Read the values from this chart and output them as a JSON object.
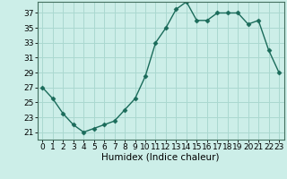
{
  "x": [
    0,
    1,
    2,
    3,
    4,
    5,
    6,
    7,
    8,
    9,
    10,
    11,
    12,
    13,
    14,
    15,
    16,
    17,
    18,
    19,
    20,
    21,
    22,
    23
  ],
  "y": [
    27,
    25.5,
    23.5,
    22,
    21,
    21.5,
    22,
    22.5,
    24,
    25.5,
    28.5,
    33,
    35,
    37.5,
    38.5,
    36,
    36,
    37,
    37,
    37,
    35.5,
    36,
    32,
    29
  ],
  "line_color": "#1a6b5a",
  "marker_color": "#1a6b5a",
  "bg_color": "#cceee8",
  "grid_color": "#aad8d0",
  "xlabel": "Humidex (Indice chaleur)",
  "xlim": [
    -0.5,
    23.5
  ],
  "ylim": [
    20.0,
    38.5
  ],
  "yticks": [
    21,
    23,
    25,
    27,
    29,
    31,
    33,
    35,
    37
  ],
  "xticks": [
    0,
    1,
    2,
    3,
    4,
    5,
    6,
    7,
    8,
    9,
    10,
    11,
    12,
    13,
    14,
    15,
    16,
    17,
    18,
    19,
    20,
    21,
    22,
    23
  ],
  "tick_fontsize": 6.5,
  "xlabel_fontsize": 7.5,
  "linewidth": 1.0,
  "markersize": 2.5
}
